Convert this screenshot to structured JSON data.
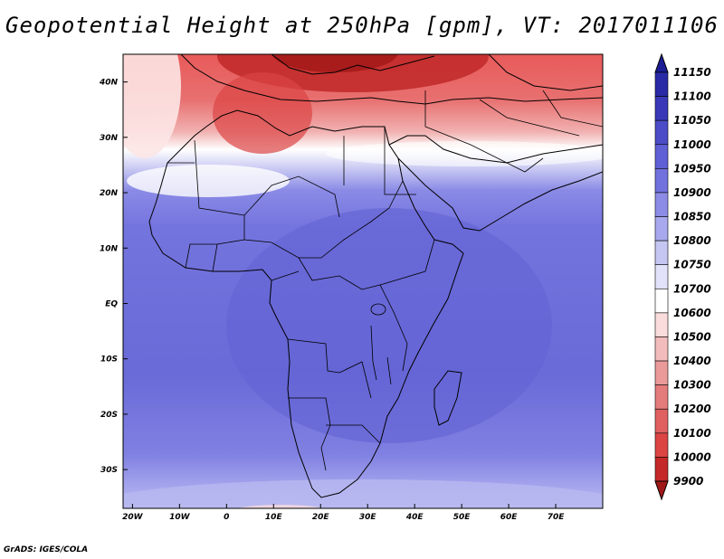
{
  "title": "Geopotential Height at 250hPa [gpm], VT: 2017011106",
  "credit": "GrADS: IGES/COLA",
  "map": {
    "lon_range": [
      -22,
      80
    ],
    "lat_range": [
      -37,
      45
    ],
    "lon_ticks": [
      {
        "value": -20,
        "label": "20W"
      },
      {
        "value": -10,
        "label": "10W"
      },
      {
        "value": 0,
        "label": "0"
      },
      {
        "value": 10,
        "label": "10E"
      },
      {
        "value": 20,
        "label": "20E"
      },
      {
        "value": 30,
        "label": "30E"
      },
      {
        "value": 40,
        "label": "40E"
      },
      {
        "value": 50,
        "label": "50E"
      },
      {
        "value": 60,
        "label": "60E"
      },
      {
        "value": 70,
        "label": "70E"
      }
    ],
    "lat_ticks": [
      {
        "value": 40,
        "label": "40N"
      },
      {
        "value": 30,
        "label": "30N"
      },
      {
        "value": 20,
        "label": "20N"
      },
      {
        "value": 10,
        "label": "10N"
      },
      {
        "value": 0,
        "label": "EQ"
      },
      {
        "value": -10,
        "label": "10S"
      },
      {
        "value": -20,
        "label": "20S"
      },
      {
        "value": -30,
        "label": "30S"
      }
    ]
  },
  "colorbar": {
    "labels": [
      "9900",
      "10000",
      "10100",
      "10200",
      "10300",
      "10400",
      "10500",
      "10600",
      "10700",
      "10750",
      "10800",
      "10850",
      "10900",
      "10950",
      "11000",
      "11050",
      "11100",
      "11150"
    ],
    "colors": [
      "#a01818",
      "#c52828",
      "#dc4444",
      "#e06060",
      "#e47c7c",
      "#eb9a9a",
      "#f3bcbc",
      "#fadcdc",
      "#ffffff",
      "#e2e2fa",
      "#c6c6f3",
      "#a8a8ee",
      "#8c8ce6",
      "#7272de",
      "#6060d6",
      "#4c4cc8",
      "#3a3ab8",
      "#2a2aa6",
      "#1c1c94"
    ]
  }
}
